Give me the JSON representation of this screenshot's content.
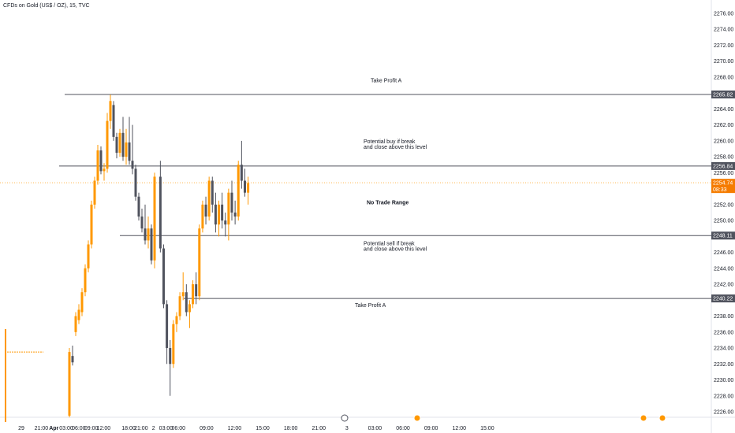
{
  "header": {
    "title": "CFDs on Gold (US$ / OZ), 15, TVC"
  },
  "colors": {
    "up": "#ff9800",
    "down": "#50535e",
    "levels": "#50535e",
    "current": "#f57c00",
    "badge": "#50535e",
    "currentDash": "#ff9800"
  },
  "chart_data": {
    "type": "candlestick",
    "symbol": "CFDs on Gold (US$ / OZ)",
    "interval": "15",
    "source": "TVC",
    "ylim": [
      2225.3,
      2277.0
    ],
    "y_ticks": [
      2226,
      2228,
      2230,
      2232,
      2234,
      2236,
      2238,
      2240,
      2242,
      2244,
      2246,
      2248,
      2250,
      2252,
      2254,
      2256,
      2258,
      2260,
      2262,
      2264,
      2266,
      2268,
      2270,
      2272,
      2274,
      2276
    ],
    "x_ticks": [
      {
        "label": "29",
        "i": 0
      },
      {
        "label": "21:00",
        "i": 11
      },
      {
        "label": "Apr",
        "i": 15
      },
      {
        "label": "03:00",
        "i": 19
      },
      {
        "label": "06:00",
        "i": 23
      },
      {
        "label": "09:00",
        "i": 27
      },
      {
        "label": "12:00",
        "i": 31
      },
      {
        "label": "18:00",
        "i": 39
      },
      {
        "label": "21:00",
        "i": 43
      },
      {
        "label": "2",
        "i": 47
      },
      {
        "label": "03:00",
        "i": 51
      },
      {
        "label": "06:00",
        "i": 55
      },
      {
        "label": "09:00",
        "i": 59
      },
      {
        "label": "12:00",
        "i": 63
      },
      {
        "label": "15:00",
        "i": 67
      },
      {
        "label": "18:00",
        "i": 71
      },
      {
        "label": "21:00",
        "i": 75
      },
      {
        "label": "3",
        "i": 79
      },
      {
        "label": "03:00",
        "i": 83
      },
      {
        "label": "06:00",
        "i": 87
      },
      {
        "label": "09:00",
        "i": 91
      },
      {
        "label": "12:00",
        "i": 95
      },
      {
        "label": "15:00",
        "i": 99
      }
    ],
    "candles": [
      [
        2225.5,
        2234.0,
        2225.3,
        2233.5
      ],
      [
        2233.0,
        2234.3,
        2231.8,
        2232.2
      ],
      [
        2236.0,
        2238.5,
        2235.5,
        2238.0
      ],
      [
        2237.5,
        2239.5,
        2237.0,
        2238.8
      ],
      [
        2238.5,
        2241.5,
        2238.0,
        2241.0
      ],
      [
        2241.0,
        2244.5,
        2240.5,
        2244.0
      ],
      [
        2244.0,
        2247.5,
        2243.5,
        2247.0
      ],
      [
        2247.0,
        2252.5,
        2246.5,
        2252.0
      ],
      [
        2252.0,
        2255.5,
        2251.5,
        2255.0
      ],
      [
        2255.0,
        2259.5,
        2254.5,
        2258.8
      ],
      [
        2258.8,
        2259.3,
        2255.8,
        2256.2
      ],
      [
        2256.2,
        2257.2,
        2255.0,
        2256.5
      ],
      [
        2256.5,
        2263.5,
        2256.0,
        2262.5
      ],
      [
        2262.5,
        2265.8,
        2261.5,
        2265.0
      ],
      [
        2264.5,
        2265.0,
        2260.0,
        2260.5
      ],
      [
        2260.5,
        2261.0,
        2257.8,
        2258.5
      ],
      [
        2258.5,
        2261.5,
        2258.0,
        2261.0
      ],
      [
        2261.0,
        2263.0,
        2257.5,
        2258.0
      ],
      [
        2258.0,
        2261.5,
        2257.0,
        2259.8
      ],
      [
        2259.8,
        2263.0,
        2257.0,
        2257.5
      ],
      [
        2257.5,
        2262.0,
        2255.8,
        2256.5
      ],
      [
        2256.5,
        2257.0,
        2252.5,
        2253.0
      ],
      [
        2253.0,
        2253.5,
        2250.0,
        2250.5
      ],
      [
        2250.5,
        2251.5,
        2248.5,
        2249.0
      ],
      [
        2249.0,
        2252.0,
        2247.0,
        2247.5
      ],
      [
        2247.5,
        2250.5,
        2246.5,
        2249.0
      ],
      [
        2249.0,
        2249.5,
        2244.5,
        2245.0
      ],
      [
        2245.0,
        2256.0,
        2244.0,
        2255.5
      ],
      [
        2255.5,
        2257.5,
        2246.0,
        2246.5
      ],
      [
        2246.5,
        2247.0,
        2239.0,
        2239.5
      ],
      [
        2239.5,
        2240.0,
        2232.0,
        2234.0
      ],
      [
        2234.0,
        2235.0,
        2228.0,
        2232.0
      ],
      [
        2232.0,
        2237.5,
        2231.5,
        2237.0
      ],
      [
        2237.0,
        2238.5,
        2236.0,
        2238.0
      ],
      [
        2238.0,
        2241.0,
        2237.5,
        2240.5
      ],
      [
        2240.5,
        2243.5,
        2240.0,
        2241.0
      ],
      [
        2241.0,
        2242.0,
        2238.0,
        2238.5
      ],
      [
        2238.5,
        2240.0,
        2236.5,
        2239.5
      ],
      [
        2239.5,
        2242.5,
        2239.0,
        2242.0
      ],
      [
        2242.0,
        2243.5,
        2239.5,
        2240.5
      ],
      [
        2240.5,
        2249.5,
        2240.0,
        2249.0
      ],
      [
        2249.0,
        2252.5,
        2248.5,
        2252.0
      ],
      [
        2252.0,
        2253.0,
        2249.5,
        2250.5
      ],
      [
        2250.5,
        2255.5,
        2250.0,
        2255.0
      ],
      [
        2255.0,
        2255.5,
        2251.0,
        2252.0
      ],
      [
        2252.0,
        2253.5,
        2248.5,
        2249.5
      ],
      [
        2249.5,
        2252.5,
        2248.0,
        2252.0
      ],
      [
        2252.0,
        2253.5,
        2249.0,
        2250.0
      ],
      [
        2250.0,
        2251.0,
        2248.0,
        2249.5
      ],
      [
        2249.5,
        2254.0,
        2247.5,
        2253.5
      ],
      [
        2253.5,
        2255.0,
        2250.0,
        2251.0
      ],
      [
        2251.0,
        2252.5,
        2249.5,
        2250.5
      ],
      [
        2250.5,
        2257.5,
        2250.0,
        2257.0
      ],
      [
        2257.0,
        2260.0,
        2254.0,
        2255.0
      ],
      [
        2255.0,
        2256.5,
        2253.0,
        2253.5
      ],
      [
        2253.5,
        2255.5,
        2252.0,
        2254.7
      ]
    ],
    "levels": [
      {
        "price": 2265.82,
        "label": "Take Profit A",
        "badge": "2265.82"
      },
      {
        "price": 2256.84,
        "label": "",
        "badge": "2256.84"
      },
      {
        "price": 2248.11,
        "label": "",
        "badge": "2248.11"
      },
      {
        "price": 2240.22,
        "label": "Take Profit A",
        "badge": "2240.22"
      }
    ],
    "current": {
      "price": 2254.74,
      "label": "2254.74",
      "countdown": "08:33"
    },
    "annotations": [
      {
        "text": "Take Profit A",
        "price": 2267.6
      },
      {
        "lines": [
          "Potential buy if break",
          "and close above this level"
        ],
        "price": 2259.7
      },
      {
        "text": "No Trade Range",
        "price": 2252.3,
        "bold": true
      },
      {
        "lines": [
          "Potential sell if break",
          "and close above this level"
        ],
        "price": 2246.9
      },
      {
        "text": "Take Profit A",
        "price": 2239.4
      }
    ],
    "pre_line": {
      "price": 2233.5
    }
  }
}
